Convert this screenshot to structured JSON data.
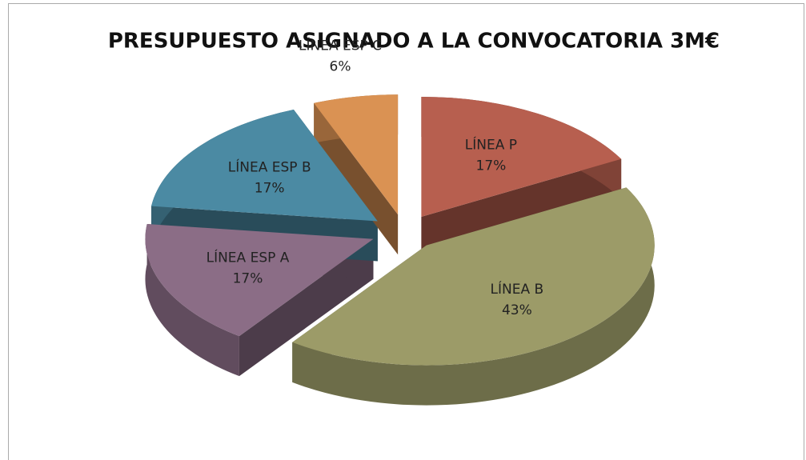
{
  "chart_data": {
    "type": "pie3d",
    "title": "PRESUPUESTO ASIGNADO A LA CONVOCATORIA 3M€",
    "categories": [
      "LÍNEA P",
      "LÍNEA B",
      "LÍNEA ESP A",
      "LÍNEA ESP B",
      "LÍNEA ESP C"
    ],
    "values": [
      17,
      43,
      17,
      17,
      6
    ],
    "value_labels": [
      "17%",
      "43%",
      "17%",
      "17%",
      "6%"
    ],
    "colors": [
      "#b75f4f",
      "#9c9b68",
      "#8b6d86",
      "#4b8aa3",
      "#da9253"
    ]
  }
}
